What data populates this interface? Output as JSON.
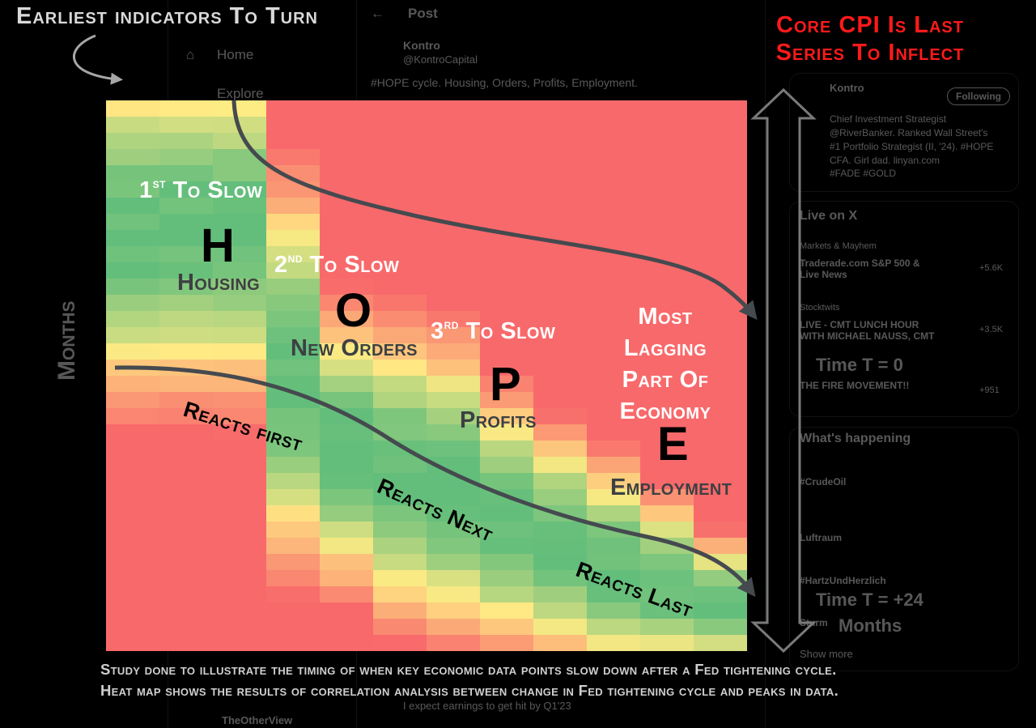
{
  "captions": {
    "top_left": "Earliest indicators To Turn",
    "top_right_line1": "Core CPI Is Last",
    "top_right_line2": "Series To Inflect",
    "footnote": "Study done to illustrate the timing of when key economic data points slow down after a Fed tightening cycle. Heat map shows the results of correlation analysis between change in Fed tightening cycle and peaks in data."
  },
  "stages": {
    "housing": {
      "ordinal": "1",
      "suffix": "st",
      "text": "To Slow",
      "letter": "H",
      "sector": "Housing"
    },
    "orders": {
      "ordinal": "2",
      "suffix": "nd",
      "text": "To Slow",
      "letter": "O",
      "sector": "New Orders"
    },
    "profits": {
      "ordinal": "3",
      "suffix": "rd",
      "text": "To Slow",
      "letter": "P",
      "sector": "Profits"
    },
    "employment": {
      "lines": [
        "Most",
        "Lagging",
        "Part Of",
        "Economy"
      ],
      "letter": "E",
      "sector": "Employment"
    }
  },
  "reactions": {
    "first": "Reacts first",
    "next": "Reacts Next",
    "last": "Reacts Last"
  },
  "chart_data": {
    "type": "heatmap",
    "rows": 34,
    "columns": 12,
    "value_range": [
      -1,
      1
    ],
    "colors": {
      "high": "#f8696b",
      "mid": "#ffeb84",
      "low": "#63be7b"
    },
    "stage_columns": {
      "H": [
        0,
        2
      ],
      "O": [
        3,
        5
      ],
      "P": [
        6,
        8
      ],
      "E": [
        9,
        11
      ]
    },
    "description_rows_green_start": [
      0,
      0,
      0,
      8,
      15,
      16,
      17,
      20,
      22,
      24,
      26,
      28
    ],
    "description_rows_green_end": [
      16,
      16,
      16,
      26,
      28,
      30,
      31,
      32,
      33,
      34,
      34,
      34
    ]
  },
  "background_feed": {
    "nav": [
      "Home",
      "Explore"
    ],
    "post_header": "Post",
    "author": "Kontro",
    "author_handle": "@KontroCapital",
    "post_text": "#HOPE cycle. Housing, Orders, Profits, Employment.",
    "bio_lines": [
      "Chief Investment Strategist",
      "@RiverBanker. Ranked Wall Street's",
      "#1 Portfolio Strategist (II, '24). #HOPE",
      "CFA. Girl dad. linyan.com",
      "#FADE #GOLD"
    ],
    "follow_button": "Following",
    "live_header": "Live on X",
    "live_items": [
      {
        "host": "Markets & Mayhem",
        "title": "Traderade.com S&P 500 & Live News",
        "count": "+5.6K"
      },
      {
        "host": "Stocktwits",
        "title": "LIVE - CMT LUNCH HOUR WITH MICHAEL NAUSS, CMT",
        "count": "+3.5K"
      },
      {
        "host": "THE FIRE MOVEMENT!!",
        "title": "",
        "count": "+951"
      }
    ],
    "happening_header": "What's happening",
    "trends": [
      "#CrudeOil",
      "Luftraum",
      "#HartzUndHerzlich",
      "Sturm"
    ],
    "show_more": "Show more",
    "reply_preview": "I expect earnings to get hit by Q1'23",
    "reply_author": "TheOtherView",
    "ghost_axis_time0": "Time T = 0",
    "ghost_axis_time24": "Time T = +24",
    "ghost_axis_months": "Months",
    "ghost_left_months": "Months"
  }
}
